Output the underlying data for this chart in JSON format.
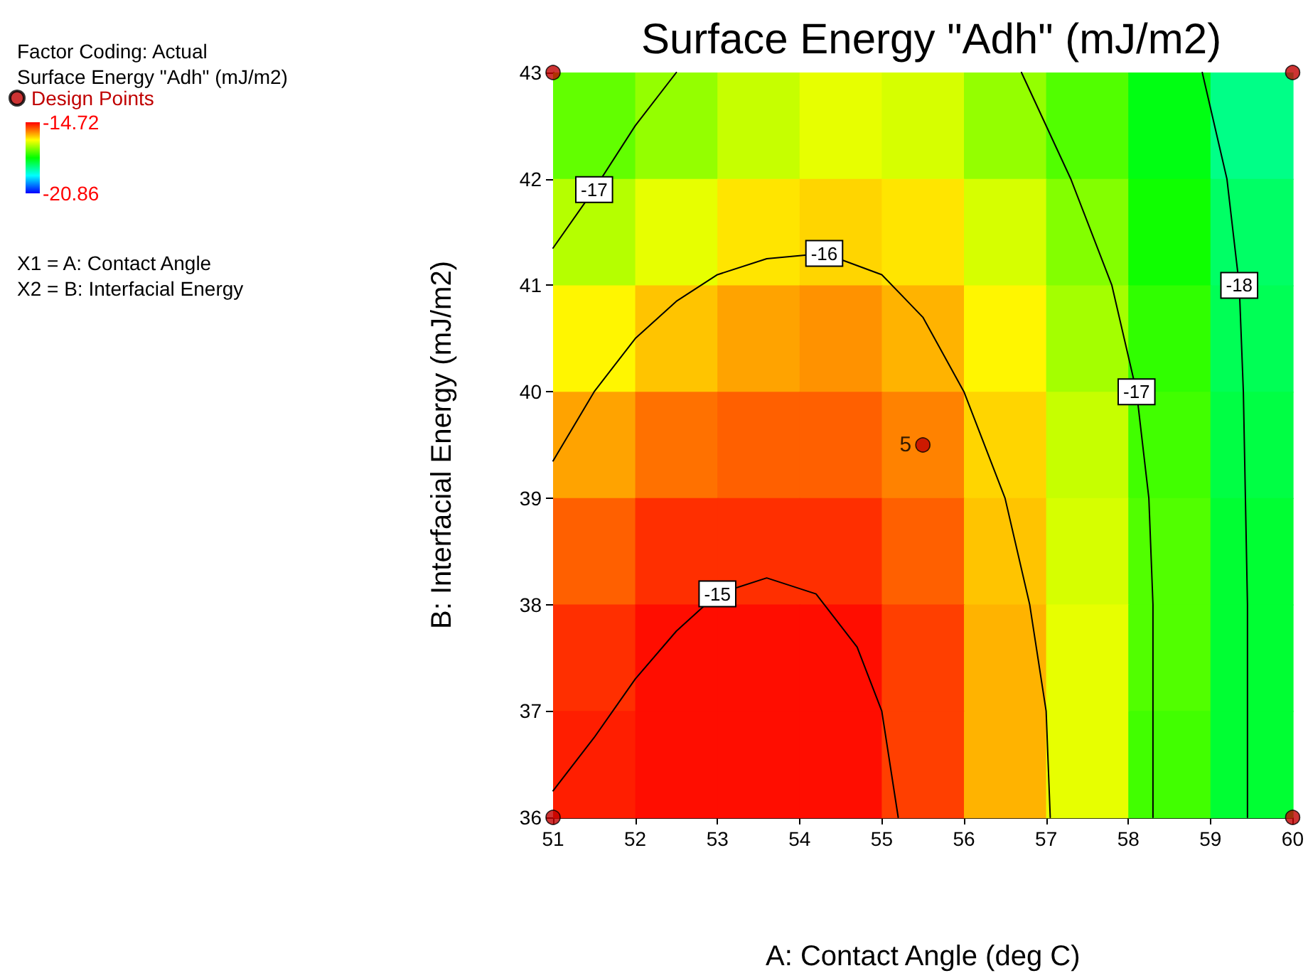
{
  "chart_data": {
    "type": "heatmap",
    "title": "Surface Energy \"Adh\" (mJ/m2)",
    "xlabel": "A: Contact Angle (deg C)",
    "ylabel": "B: Interfacial Energy (mJ/m2)",
    "clabel": "Surface Energy \"Adh\" (mJ/m2)",
    "annotations": [
      "Factor Coding: Actual",
      "X1 = A: Contact Angle",
      "X2 = B: Interfacial Energy",
      {
        "text": "5",
        "x": 55.5,
        "y": 39.5
      }
    ],
    "xlim": [
      51,
      60
    ],
    "xticks": [
      51,
      52,
      53,
      54,
      55,
      56,
      57,
      58,
      59,
      60
    ],
    "ylim": [
      36,
      43
    ],
    "yticks": [
      36,
      37,
      38,
      39,
      40,
      41,
      42,
      43
    ],
    "clim": [
      -20.86,
      -14.72
    ],
    "cticks": [
      -20.86,
      -14.72
    ],
    "cells": [
      [
        -17.2,
        -16.9,
        -16.6,
        -16.4,
        -16.5,
        -16.9,
        -17.3,
        -17.9,
        -18.6
      ],
      [
        -16.7,
        -16.4,
        -16.1,
        -16.0,
        -16.1,
        -16.5,
        -17.0,
        -17.7,
        -18.4
      ],
      [
        -16.2,
        -15.9,
        -15.7,
        -15.6,
        -15.8,
        -16.2,
        -16.8,
        -17.5,
        -18.3
      ],
      [
        -15.7,
        -15.4,
        -15.3,
        -15.3,
        -15.5,
        -16.0,
        -16.6,
        -17.4,
        -18.2
      ],
      [
        -15.3,
        -15.0,
        -15.0,
        -15.0,
        -15.3,
        -15.9,
        -16.5,
        -17.3,
        -18.1
      ],
      [
        -15.0,
        -14.8,
        -14.8,
        -14.8,
        -15.1,
        -15.8,
        -16.4,
        -17.3,
        -18.1
      ],
      [
        -14.9,
        -14.8,
        -14.8,
        -14.8,
        -15.1,
        -15.8,
        -16.4,
        -17.4,
        -18.1
      ]
    ],
    "series": [
      {
        "type": "line",
        "name": "-15",
        "color": "#000000",
        "x": [
          51,
          51.5,
          52,
          52.5,
          53,
          53.6,
          54.2,
          54.7,
          55,
          55.2
        ],
        "values": [
          36.25,
          36.75,
          37.3,
          37.75,
          38.1,
          38.25,
          38.1,
          37.6,
          37,
          36
        ]
      },
      {
        "type": "line",
        "name": "-16",
        "color": "#000000",
        "x": [
          51,
          51.5,
          52,
          52.5,
          53,
          53.6,
          54.3,
          55,
          55.5,
          56,
          56.5,
          56.8,
          57,
          57.05
        ],
        "values": [
          39.35,
          40,
          40.5,
          40.85,
          41.1,
          41.25,
          41.3,
          41.1,
          40.7,
          40,
          39,
          38,
          37,
          36
        ]
      },
      {
        "type": "line",
        "name": "-17",
        "color": "#000000",
        "x": [
          51,
          51.5,
          52,
          52.5
        ],
        "values": [
          41.35,
          41.9,
          42.5,
          43
        ]
      },
      {
        "type": "line",
        "name": "-17",
        "color": "#000000",
        "x": [
          56.7,
          57.3,
          57.8,
          58.1,
          58.25,
          58.3,
          58.3
        ],
        "values": [
          43,
          42,
          41,
          40,
          39,
          38,
          36
        ]
      },
      {
        "type": "line",
        "name": "-18",
        "color": "#000000",
        "x": [
          58.9,
          59.2,
          59.35,
          59.4,
          59.45,
          59.45
        ],
        "values": [
          43,
          42,
          41,
          40,
          38,
          36
        ]
      },
      {
        "type": "scatter",
        "name": "Design Points",
        "color": "#c00000",
        "x": [
          51,
          60,
          51,
          60,
          55.5
        ],
        "values": [
          43,
          43,
          36,
          36,
          39.5
        ]
      }
    ],
    "legend": "top left",
    "grid": false,
    "line_style": "solid"
  }
}
